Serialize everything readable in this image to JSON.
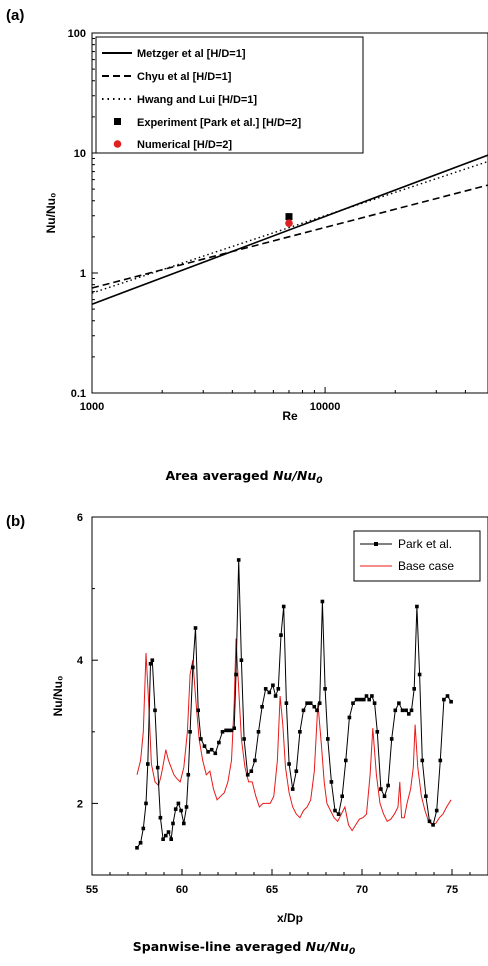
{
  "chart_data": [
    {
      "panel_label": "(a)",
      "type": "line",
      "xlabel": "Re",
      "ylabel": "Nu/Nu₀",
      "xscale": "log",
      "yscale": "log",
      "xlim": [
        1000,
        50000
      ],
      "ylim": [
        0.1,
        100
      ],
      "xticks": [
        {
          "v": 1000,
          "label": "1000"
        },
        {
          "v": 10000,
          "label": "10000"
        }
      ],
      "yticks": [
        {
          "v": 0.1,
          "label": "0.1"
        },
        {
          "v": 1,
          "label": "1"
        },
        {
          "v": 10,
          "label": "10"
        },
        {
          "v": 100,
          "label": "100"
        }
      ],
      "legend_position": "top-left",
      "series": [
        {
          "name": "Metzger et al [H/D=1]",
          "style": "solid",
          "color": "#000000",
          "x": [
            1000,
            50000
          ],
          "y": [
            0.55,
            9.6
          ]
        },
        {
          "name": "Chyu et al [H/D=1]",
          "style": "dashed",
          "color": "#000000",
          "x": [
            1000,
            50000
          ],
          "y": [
            0.75,
            5.4
          ]
        },
        {
          "name": "Hwang and Lui [H/D=1]",
          "style": "dotted",
          "color": "#000000",
          "x": [
            1000,
            50000
          ],
          "y": [
            0.68,
            8.5
          ]
        },
        {
          "name": "Experiment [Park et al.] [H/D=2]",
          "style": "square-marker",
          "color": "#000000",
          "x": [
            7000
          ],
          "y": [
            2.95
          ]
        },
        {
          "name": "Numerical [H/D=2]",
          "style": "circle-marker",
          "color": "#e02020",
          "x": [
            7000
          ],
          "y": [
            2.6
          ]
        }
      ],
      "caption_text": "Area averaged ",
      "caption_italic": "Nu/Nu",
      "caption_sub": "0"
    },
    {
      "panel_label": "(b)",
      "type": "line",
      "xlabel": "x/Dp",
      "ylabel": "Nu/Nu₀",
      "xlim": [
        55,
        77
      ],
      "ylim": [
        1,
        6
      ],
      "xticks": [
        {
          "v": 55,
          "label": "55"
        },
        {
          "v": 60,
          "label": "60"
        },
        {
          "v": 65,
          "label": "65"
        },
        {
          "v": 70,
          "label": "70"
        },
        {
          "v": 75,
          "label": "75"
        }
      ],
      "yticks": [
        {
          "v": 2,
          "label": "2"
        },
        {
          "v": 4,
          "label": "4"
        },
        {
          "v": 6,
          "label": "6"
        }
      ],
      "legend_position": "top-right",
      "series": [
        {
          "name": "Park et al.",
          "color": "#000000",
          "marker": "square",
          "x": [
            57.5,
            57.7,
            57.85,
            58.0,
            58.1,
            58.25,
            58.35,
            58.5,
            58.65,
            58.8,
            58.95,
            59.1,
            59.25,
            59.4,
            59.5,
            59.65,
            59.8,
            59.95,
            60.1,
            60.25,
            60.35,
            60.45,
            60.6,
            60.75,
            60.9,
            61.05,
            61.25,
            61.45,
            61.65,
            61.85,
            62.05,
            62.25,
            62.45,
            62.6,
            62.75,
            62.9,
            63.0,
            63.15,
            63.3,
            63.45,
            63.65,
            63.85,
            64.05,
            64.25,
            64.45,
            64.65,
            64.85,
            65.05,
            65.2,
            65.35,
            65.5,
            65.65,
            65.8,
            65.95,
            66.15,
            66.35,
            66.55,
            66.75,
            66.95,
            67.15,
            67.35,
            67.5,
            67.65,
            67.8,
            67.95,
            68.1,
            68.3,
            68.5,
            68.7,
            68.9,
            69.1,
            69.3,
            69.5,
            69.7,
            69.9,
            70.1,
            70.25,
            70.4,
            70.55,
            70.7,
            70.85,
            71.05,
            71.25,
            71.45,
            71.65,
            71.85,
            72.05,
            72.25,
            72.45,
            72.6,
            72.75,
            72.9,
            73.05,
            73.2,
            73.35,
            73.55,
            73.75,
            73.95,
            74.15,
            74.35,
            74.55,
            74.75,
            74.95
          ],
          "y": [
            1.38,
            1.45,
            1.65,
            2.0,
            2.55,
            3.95,
            4.0,
            3.3,
            2.5,
            1.8,
            1.5,
            1.55,
            1.6,
            1.5,
            1.72,
            1.92,
            2.0,
            1.9,
            1.72,
            1.95,
            2.4,
            3.0,
            3.9,
            4.45,
            3.3,
            2.9,
            2.8,
            2.72,
            2.75,
            2.7,
            2.85,
            3.0,
            3.02,
            3.02,
            3.02,
            3.05,
            3.8,
            5.4,
            4.0,
            2.9,
            2.4,
            2.45,
            2.6,
            3.0,
            3.35,
            3.6,
            3.55,
            3.65,
            3.5,
            3.6,
            4.35,
            4.75,
            3.4,
            2.55,
            2.2,
            2.45,
            3.0,
            3.3,
            3.4,
            3.4,
            3.35,
            3.3,
            3.4,
            4.82,
            3.6,
            2.9,
            2.3,
            1.9,
            1.85,
            2.1,
            2.6,
            3.2,
            3.4,
            3.45,
            3.45,
            3.45,
            3.5,
            3.45,
            3.5,
            3.4,
            3.0,
            2.2,
            2.1,
            2.25,
            2.9,
            3.3,
            3.4,
            3.3,
            3.3,
            3.25,
            3.3,
            3.6,
            4.75,
            3.8,
            2.6,
            2.1,
            1.75,
            1.7,
            1.9,
            2.6,
            3.45,
            3.5,
            3.42
          ]
        },
        {
          "name": "Base case",
          "color": "#e81919",
          "marker": "none",
          "x": [
            57.5,
            57.7,
            57.85,
            58.0,
            58.15,
            58.3,
            58.5,
            58.7,
            58.85,
            59.0,
            59.1,
            59.25,
            59.4,
            59.55,
            59.7,
            59.9,
            60.1,
            60.3,
            60.45,
            60.6,
            60.75,
            60.95,
            61.15,
            61.35,
            61.55,
            61.75,
            61.95,
            62.15,
            62.35,
            62.55,
            62.75,
            62.9,
            63.0,
            63.15,
            63.3,
            63.5,
            63.7,
            63.9,
            64.1,
            64.3,
            64.5,
            64.7,
            64.9,
            65.1,
            65.3,
            65.45,
            65.6,
            65.75,
            65.95,
            66.15,
            66.35,
            66.55,
            66.75,
            66.95,
            67.15,
            67.35,
            67.55,
            67.75,
            67.9,
            68.05,
            68.25,
            68.45,
            68.65,
            68.85,
            69.05,
            69.25,
            69.45,
            69.65,
            69.85,
            70.05,
            70.25,
            70.45,
            70.6,
            70.8,
            71.0,
            71.2,
            71.4,
            71.6,
            71.8,
            72.0,
            72.1,
            72.2,
            72.35,
            72.5,
            72.7,
            72.85,
            72.95,
            73.1,
            73.3,
            73.5,
            73.7,
            73.9,
            74.1,
            74.3,
            74.5,
            74.7,
            74.95
          ],
          "y": [
            2.4,
            2.6,
            3.0,
            4.1,
            3.4,
            2.55,
            2.3,
            2.25,
            2.4,
            2.6,
            2.75,
            2.6,
            2.5,
            2.4,
            2.35,
            2.3,
            2.5,
            3.0,
            3.8,
            4.0,
            3.5,
            2.9,
            2.6,
            2.4,
            2.45,
            2.2,
            2.05,
            2.1,
            2.15,
            2.3,
            2.6,
            3.4,
            4.3,
            3.6,
            2.9,
            2.5,
            2.3,
            2.3,
            2.1,
            1.95,
            2.0,
            2.0,
            2.0,
            2.1,
            2.6,
            3.5,
            3.1,
            2.5,
            2.15,
            1.95,
            1.85,
            1.8,
            1.9,
            1.95,
            2.05,
            2.45,
            3.4,
            2.8,
            2.3,
            2.0,
            1.9,
            1.8,
            1.75,
            1.85,
            1.95,
            1.7,
            1.62,
            1.7,
            1.78,
            1.8,
            1.85,
            2.4,
            3.05,
            2.4,
            2.0,
            1.85,
            1.75,
            1.78,
            1.85,
            1.95,
            2.3,
            1.8,
            1.8,
            2.0,
            2.2,
            2.5,
            3.1,
            2.5,
            2.1,
            1.9,
            1.75,
            1.7,
            1.72,
            1.8,
            1.85,
            1.95,
            2.05
          ]
        }
      ],
      "caption_text": "Spanwise-line averaged ",
      "caption_italic": "Nu/Nu",
      "caption_sub": "0"
    }
  ]
}
